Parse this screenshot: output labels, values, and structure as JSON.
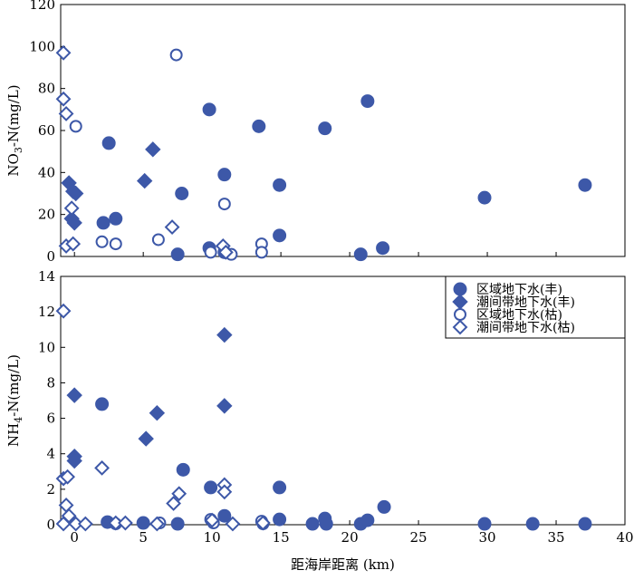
{
  "chart_data": [
    {
      "type": "scatter",
      "ylabel_parts": {
        "pre": "NO",
        "sub": "3",
        "post": "-N(mg/L)"
      },
      "xlim": [
        -1,
        40
      ],
      "ylim": [
        0,
        120
      ],
      "yticks": [
        "0",
        "20",
        "40",
        "60",
        "80",
        "100",
        "120"
      ],
      "series": [
        {
          "name": "区域地下水(丰)",
          "marker": "filled-circle",
          "points": [
            [
              2.1,
              16
            ],
            [
              3.0,
              18
            ],
            [
              2.5,
              54
            ],
            [
              7.5,
              1
            ],
            [
              7.8,
              30
            ],
            [
              9.8,
              70
            ],
            [
              9.8,
              4
            ],
            [
              10.9,
              39
            ],
            [
              10.9,
              2
            ],
            [
              13.4,
              62
            ],
            [
              14.9,
              34
            ],
            [
              14.9,
              10
            ],
            [
              18.2,
              61
            ],
            [
              20.8,
              1
            ],
            [
              21.3,
              74
            ],
            [
              22.4,
              4
            ],
            [
              29.8,
              28
            ],
            [
              37.1,
              34
            ]
          ]
        },
        {
          "name": "潮间带地下水(丰)",
          "marker": "filled-diamond",
          "points": [
            [
              -0.4,
              35
            ],
            [
              -0.1,
              31
            ],
            [
              0.1,
              30
            ],
            [
              -0.2,
              18
            ],
            [
              0.0,
              16
            ],
            [
              5.1,
              36
            ],
            [
              5.7,
              51
            ]
          ]
        },
        {
          "name": "区域地下水(枯)",
          "marker": "hollow-circle",
          "points": [
            [
              0.1,
              62
            ],
            [
              2.0,
              7
            ],
            [
              3.0,
              6
            ],
            [
              6.1,
              8
            ],
            [
              7.4,
              96
            ],
            [
              9.9,
              2
            ],
            [
              10.9,
              25
            ],
            [
              11.4,
              1
            ],
            [
              13.6,
              6
            ],
            [
              13.6,
              2
            ]
          ]
        },
        {
          "name": "潮间带地下水(枯)",
          "marker": "hollow-diamond",
          "points": [
            [
              -0.8,
              97
            ],
            [
              -0.8,
              75
            ],
            [
              -0.6,
              68
            ],
            [
              -0.2,
              23
            ],
            [
              -0.6,
              5
            ],
            [
              -0.1,
              6
            ],
            [
              7.1,
              14
            ],
            [
              10.8,
              5
            ],
            [
              11.0,
              2
            ]
          ]
        }
      ]
    },
    {
      "type": "scatter",
      "ylabel_parts": {
        "pre": "NH",
        "sub": "4",
        "post": "-N(mg/L)"
      },
      "xlabel": "距海岸距离 (km)",
      "xlim": [
        -1,
        40
      ],
      "ylim": [
        0,
        14
      ],
      "xticks": [
        "0",
        "5",
        "10",
        "15",
        "20",
        "25",
        "30",
        "35",
        "40"
      ],
      "yticks": [
        "0",
        "2",
        "4",
        "6",
        "8",
        "10",
        "12",
        "14"
      ],
      "legend_position": "top-right",
      "series": [
        {
          "name": "区域地下水(丰)",
          "marker": "filled-circle",
          "points": [
            [
              2.0,
              6.8
            ],
            [
              2.4,
              0.15
            ],
            [
              5.0,
              0.1
            ],
            [
              7.5,
              0.05
            ],
            [
              7.9,
              3.1
            ],
            [
              9.9,
              2.1
            ],
            [
              10.9,
              0.5
            ],
            [
              14.9,
              2.1
            ],
            [
              14.9,
              0.3
            ],
            [
              17.3,
              0.05
            ],
            [
              18.2,
              0.35
            ],
            [
              18.3,
              0.05
            ],
            [
              20.8,
              0.05
            ],
            [
              21.3,
              0.25
            ],
            [
              22.5,
              1.0
            ],
            [
              29.8,
              0.05
            ],
            [
              33.3,
              0.05
            ],
            [
              37.1,
              0.05
            ]
          ]
        },
        {
          "name": "潮间带地下水(丰)",
          "marker": "filled-diamond",
          "points": [
            [
              0.0,
              7.3
            ],
            [
              0.0,
              3.85
            ],
            [
              0.0,
              3.6
            ],
            [
              5.2,
              4.85
            ],
            [
              6.0,
              6.3
            ],
            [
              10.9,
              10.7
            ],
            [
              10.9,
              6.7
            ]
          ]
        },
        {
          "name": "区域地下水(枯)",
          "marker": "hollow-circle",
          "points": [
            [
              3.0,
              0.05
            ],
            [
              6.2,
              0.1
            ],
            [
              9.9,
              0.3
            ],
            [
              10.1,
              0.1
            ],
            [
              13.6,
              0.2
            ],
            [
              13.7,
              0.05
            ]
          ]
        },
        {
          "name": "潮间带地下水(枯)",
          "marker": "hollow-diamond",
          "points": [
            [
              -0.8,
              12.05
            ],
            [
              -0.8,
              2.6
            ],
            [
              -0.5,
              2.7
            ],
            [
              -0.6,
              1.1
            ],
            [
              -0.4,
              0.5
            ],
            [
              -0.8,
              0.05
            ],
            [
              0.1,
              0.05
            ],
            [
              0.8,
              0.05
            ],
            [
              2.0,
              3.2
            ],
            [
              3.0,
              0.1
            ],
            [
              3.7,
              0.1
            ],
            [
              6.0,
              0.05
            ],
            [
              7.2,
              1.2
            ],
            [
              7.6,
              1.75
            ],
            [
              10.0,
              0.25
            ],
            [
              10.9,
              2.25
            ],
            [
              10.9,
              1.85
            ],
            [
              11.5,
              0.05
            ],
            [
              13.7,
              0.1
            ]
          ]
        }
      ]
    }
  ],
  "legend": {
    "items": [
      {
        "label": "区域地下水(丰)",
        "marker": "filled-circle"
      },
      {
        "label": "潮间带地下水(丰)",
        "marker": "filled-diamond"
      },
      {
        "label": "区域地下水(枯)",
        "marker": "hollow-circle"
      },
      {
        "label": "潮间带地下水(枯)",
        "marker": "hollow-diamond"
      }
    ]
  },
  "colors": {
    "marker": "#3d58a8",
    "axis": "#000000"
  }
}
